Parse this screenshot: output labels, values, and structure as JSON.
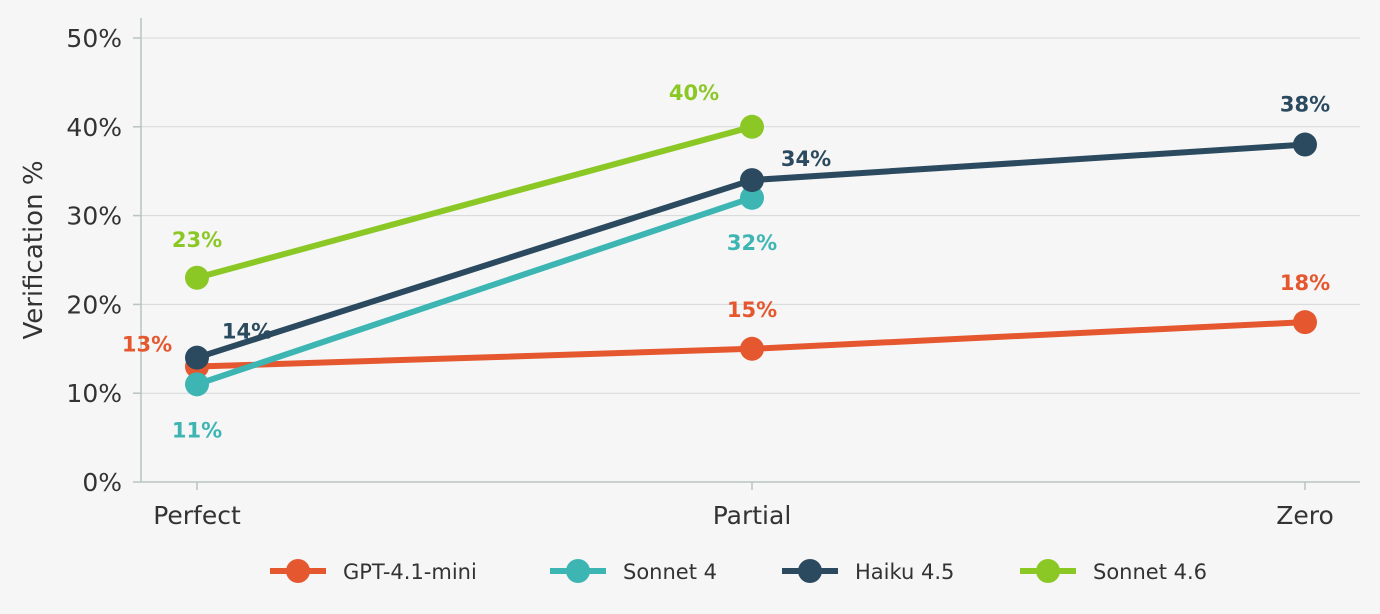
{
  "chart_data": {
    "type": "line",
    "title": "",
    "xlabel": "",
    "ylabel": "Verification %",
    "categories": [
      "Perfect",
      "Partial",
      "Zero"
    ],
    "ylim": [
      0,
      50
    ],
    "yticks": [
      "0%",
      "10%",
      "20%",
      "30%",
      "40%",
      "50%"
    ],
    "grid": true,
    "legend_position": "bottom",
    "series": [
      {
        "name": "GPT-4.1-mini",
        "color": "#e5582f",
        "values": [
          13,
          15,
          18
        ],
        "labels": [
          "13%",
          "15%",
          "18%"
        ]
      },
      {
        "name": "Sonnet 4",
        "color": "#3db5b3",
        "values": [
          11,
          32,
          null
        ],
        "labels": [
          "11%",
          "32%",
          null
        ]
      },
      {
        "name": "Haiku 4.5",
        "color": "#2c4a5f",
        "values": [
          14,
          34,
          38
        ],
        "labels": [
          "14%",
          "34%",
          "38%"
        ]
      },
      {
        "name": "Sonnet 4.6",
        "color": "#8bc826",
        "values": [
          23,
          40,
          null
        ],
        "labels": [
          "23%",
          "40%",
          null
        ]
      }
    ]
  }
}
